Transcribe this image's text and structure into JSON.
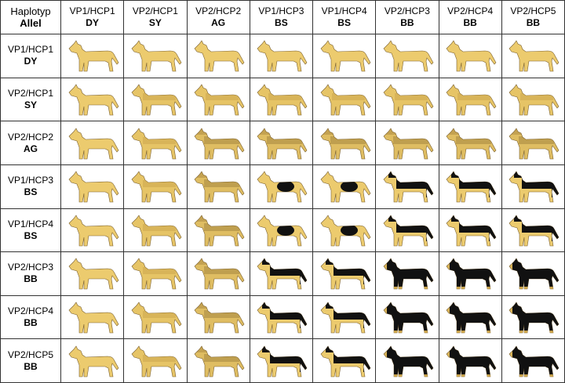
{
  "table": {
    "corner": {
      "top": "Haplotyp",
      "bottom": "Allel"
    },
    "columns": [
      {
        "haplotype": "VP1/HCP1",
        "allele": "DY"
      },
      {
        "haplotype": "VP2/HCP1",
        "allele": "SY"
      },
      {
        "haplotype": "VP2/HCP2",
        "allele": "AG"
      },
      {
        "haplotype": "VP1/HCP3",
        "allele": "BS"
      },
      {
        "haplotype": "VP1/HCP4",
        "allele": "BS"
      },
      {
        "haplotype": "VP2/HCP3",
        "allele": "BB"
      },
      {
        "haplotype": "VP2/HCP4",
        "allele": "BB"
      },
      {
        "haplotype": "VP2/HCP5",
        "allele": "BB"
      }
    ],
    "rows": [
      {
        "haplotype": "VP1/HCP1",
        "allele": "DY"
      },
      {
        "haplotype": "VP2/HCP1",
        "allele": "SY"
      },
      {
        "haplotype": "VP2/HCP2",
        "allele": "AG"
      },
      {
        "haplotype": "VP1/HCP3",
        "allele": "BS"
      },
      {
        "haplotype": "VP1/HCP4",
        "allele": "BS"
      },
      {
        "haplotype": "VP2/HCP3",
        "allele": "BB"
      },
      {
        "haplotype": "VP2/HCP4",
        "allele": "BB"
      },
      {
        "haplotype": "VP2/HCP5",
        "allele": "BB"
      }
    ]
  }
}
